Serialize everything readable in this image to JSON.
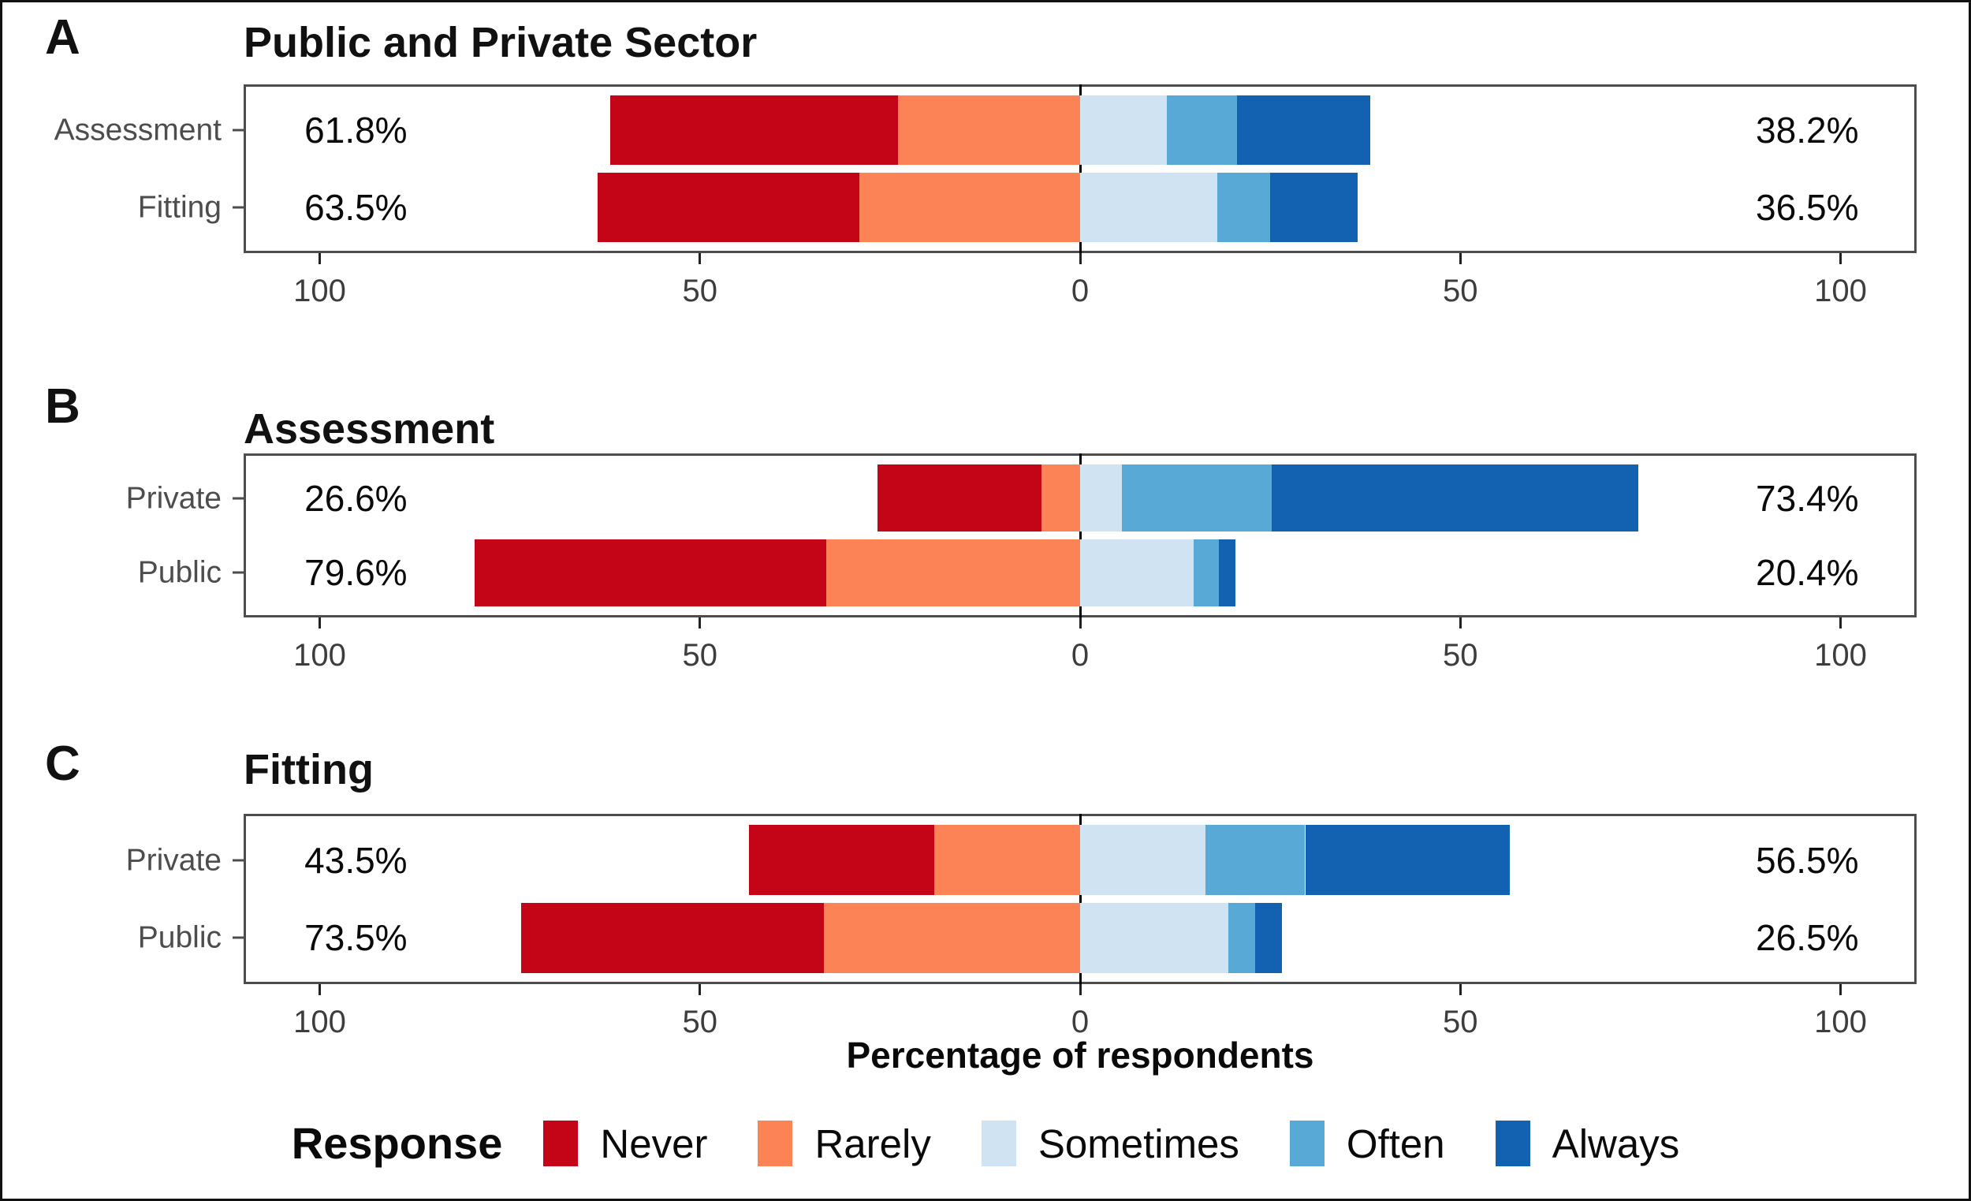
{
  "canvas": {
    "background": "#ffffff",
    "frame_color": "#111111",
    "panel_border_color": "#4d4d4d",
    "zero_line_color": "#000000",
    "tick_text_color": "#3d3d3d",
    "category_text_color": "#4d4d4d"
  },
  "chart_data": {
    "type": "bar",
    "subtype": "diverging-stacked-likert-horizontal",
    "unit": "percent",
    "axis": {
      "label": "Percentage of respondents",
      "tick_values": [
        -100,
        -50,
        0,
        50,
        100
      ],
      "tick_labels": [
        "100",
        "50",
        "0",
        "50",
        "100"
      ],
      "range": [
        -110,
        110
      ],
      "grid": false
    },
    "legend": {
      "title": "Response",
      "position": "bottom",
      "items": [
        {
          "label": "Never",
          "color": "#c40417"
        },
        {
          "label": "Rarely",
          "color": "#fb8355"
        },
        {
          "label": "Sometimes",
          "color": "#cfe3f2"
        },
        {
          "label": "Often",
          "color": "#58a9d5"
        },
        {
          "label": "Always",
          "color": "#1361b1"
        }
      ]
    },
    "negative_side_keys": [
      "Never",
      "Rarely"
    ],
    "positive_side_keys": [
      "Sometimes",
      "Often",
      "Always"
    ],
    "panels": [
      {
        "letter": "A",
        "title": "Public and Private Sector",
        "rows": [
          {
            "category": "Assessment",
            "left_total_label": "61.8%",
            "right_total_label": "38.2%",
            "values": {
              "Never": 37.8,
              "Rarely": 24.0,
              "Sometimes": 11.4,
              "Often": 9.2,
              "Always": 17.6
            }
          },
          {
            "category": "Fitting",
            "left_total_label": "63.5%",
            "right_total_label": "36.5%",
            "values": {
              "Never": 34.5,
              "Rarely": 29.0,
              "Sometimes": 18.0,
              "Often": 7.0,
              "Always": 11.5
            }
          }
        ]
      },
      {
        "letter": "B",
        "title": "Assessment",
        "rows": [
          {
            "category": "Private",
            "left_total_label": "26.6%",
            "right_total_label": "73.4%",
            "values": {
              "Never": 21.5,
              "Rarely": 5.1,
              "Sometimes": 5.5,
              "Often": 19.7,
              "Always": 48.2
            }
          },
          {
            "category": "Public",
            "left_total_label": "79.6%",
            "right_total_label": "20.4%",
            "values": {
              "Never": 46.2,
              "Rarely": 33.4,
              "Sometimes": 14.9,
              "Often": 3.3,
              "Always": 2.2
            }
          }
        ]
      },
      {
        "letter": "C",
        "title": "Fitting",
        "rows": [
          {
            "category": "Private",
            "left_total_label": "43.5%",
            "right_total_label": "56.5%",
            "values": {
              "Never": 24.3,
              "Rarely": 19.2,
              "Sometimes": 16.5,
              "Often": 13.1,
              "Always": 26.9
            }
          },
          {
            "category": "Public",
            "left_total_label": "73.5%",
            "right_total_label": "26.5%",
            "values": {
              "Never": 39.8,
              "Rarely": 33.7,
              "Sometimes": 19.5,
              "Often": 3.5,
              "Always": 3.5
            }
          }
        ]
      }
    ]
  }
}
